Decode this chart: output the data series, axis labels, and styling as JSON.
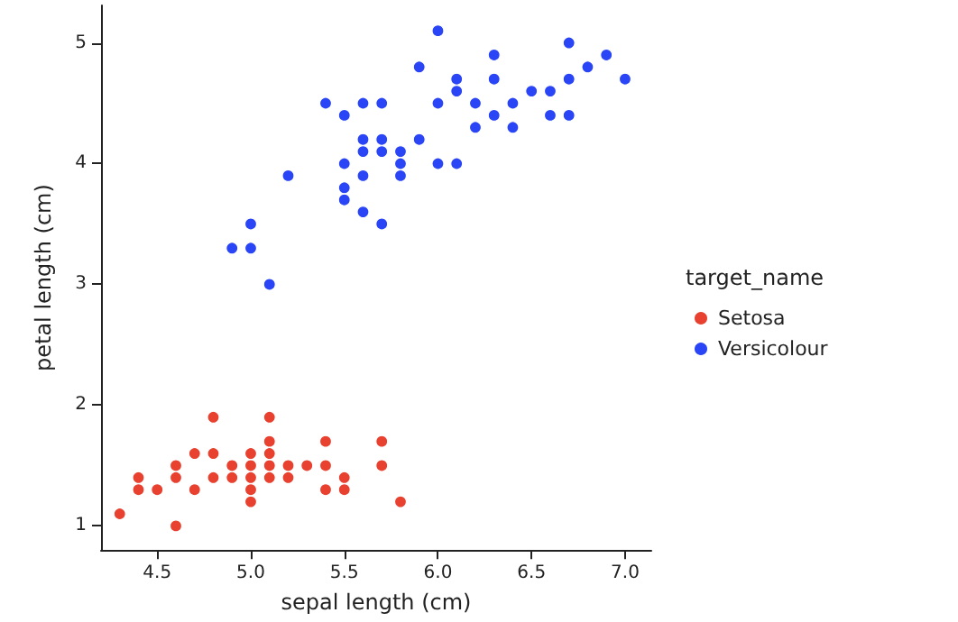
{
  "chart_data": {
    "type": "scatter",
    "xlabel": "sepal length (cm)",
    "ylabel": "petal length (cm)",
    "legend_title": "target_name",
    "legend": "right",
    "marker": "circle",
    "grid": false,
    "xlim": [
      4.2,
      7.14
    ],
    "xticks": [
      4.5,
      {
        "value": 5,
        "label": "5.0"
      },
      5.5,
      {
        "value": 6,
        "label": "6.0"
      },
      6.5,
      {
        "value": 7,
        "label": "7.0"
      }
    ],
    "ylim": [
      0.8,
      5.31
    ],
    "yticks": [
      1,
      2,
      3,
      4,
      5
    ],
    "series": [
      {
        "name": "Setosa",
        "color": "#e8412f",
        "x": [
          5.1,
          4.9,
          4.7,
          4.6,
          5.0,
          5.4,
          4.6,
          5.0,
          4.4,
          4.9,
          5.4,
          4.8,
          4.8,
          4.3,
          5.8,
          5.7,
          5.4,
          5.7,
          5.1,
          4.6,
          5.1,
          4.8,
          5.0,
          5.2,
          5.2,
          4.7,
          5.5,
          5.0,
          5.5,
          4.4,
          5.0,
          4.5,
          5.1,
          5.1,
          5.3
        ],
        "values": [
          1.4,
          1.4,
          1.3,
          1.5,
          1.4,
          1.7,
          1.4,
          1.5,
          1.4,
          1.5,
          1.5,
          1.6,
          1.4,
          1.1,
          1.2,
          1.5,
          1.3,
          1.7,
          1.5,
          1.0,
          1.7,
          1.9,
          1.6,
          1.5,
          1.4,
          1.6,
          1.4,
          1.2,
          1.3,
          1.3,
          1.3,
          1.3,
          1.9,
          1.6,
          1.5
        ]
      },
      {
        "name": "Versicolour",
        "color": "#2a45f5",
        "x": [
          7.0,
          6.4,
          6.9,
          5.5,
          6.5,
          5.7,
          6.3,
          4.9,
          6.6,
          5.2,
          5.0,
          5.9,
          6.0,
          6.1,
          5.6,
          6.7,
          5.6,
          5.8,
          6.2,
          5.6,
          5.9,
          6.1,
          6.3,
          6.4,
          6.6,
          6.8,
          6.7,
          6.0,
          5.7,
          5.5,
          5.5,
          5.8,
          6.0,
          5.4,
          6.7,
          6.3,
          5.6,
          5.5,
          6.1,
          5.8,
          5.0,
          5.6,
          5.7,
          6.2,
          5.1,
          5.7
        ],
        "values": [
          4.7,
          4.5,
          4.9,
          4.0,
          4.6,
          4.5,
          4.7,
          3.3,
          4.6,
          3.9,
          3.5,
          4.2,
          4.0,
          4.7,
          3.6,
          4.4,
          4.5,
          4.1,
          4.5,
          3.9,
          4.8,
          4.0,
          4.9,
          4.3,
          4.4,
          4.8,
          5.0,
          4.5,
          3.5,
          3.8,
          3.7,
          3.9,
          5.1,
          4.5,
          4.7,
          4.4,
          4.1,
          4.4,
          4.6,
          4.0,
          3.3,
          4.2,
          4.2,
          4.3,
          3.0,
          4.1
        ]
      }
    ]
  }
}
